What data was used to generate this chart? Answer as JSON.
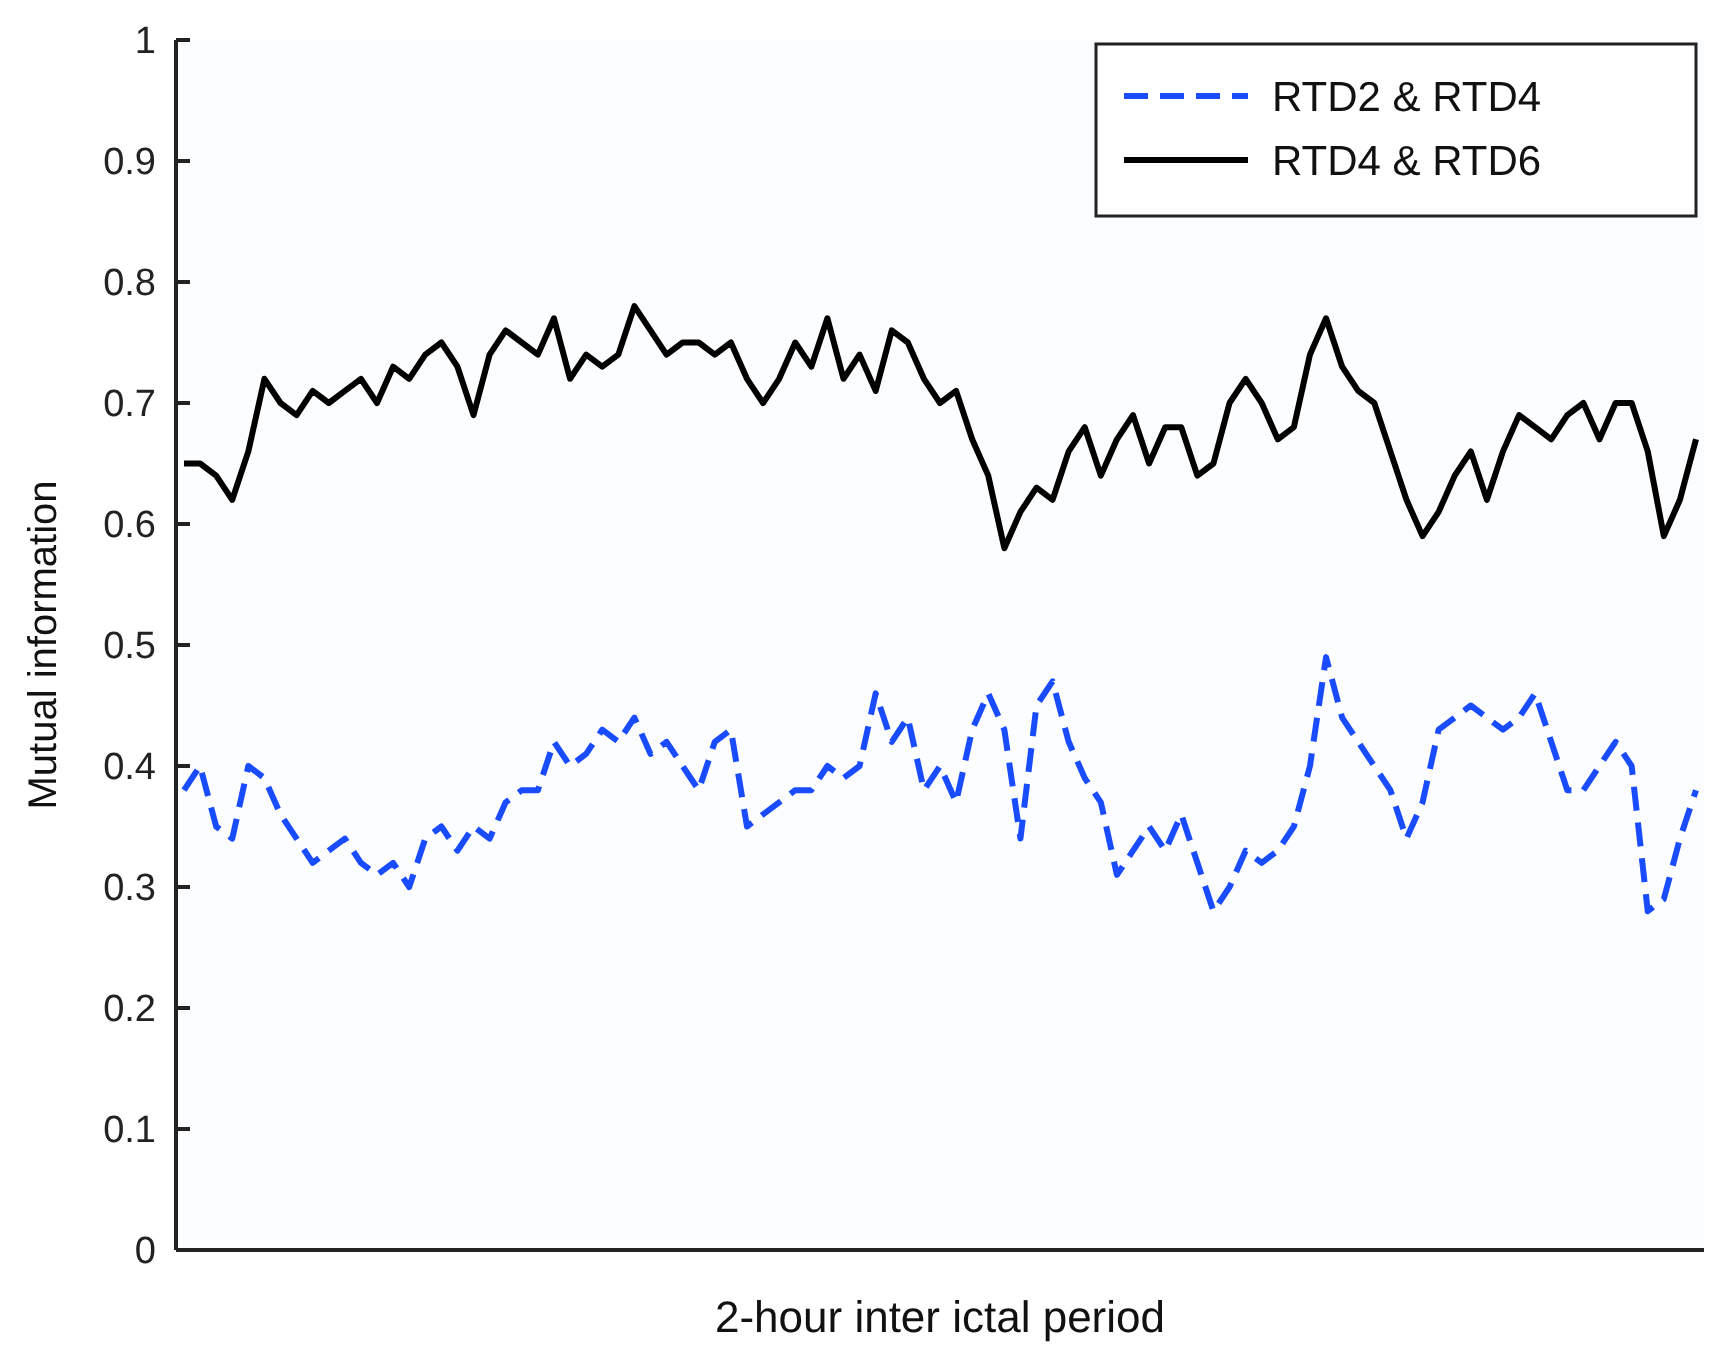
{
  "chart_data": {
    "type": "line",
    "xlabel": "2-hour inter ictal period",
    "ylabel": "Mutual information",
    "categories": [
      null,
      null,
      null,
      null,
      null,
      null,
      null,
      null,
      null,
      null,
      null,
      null,
      null,
      null,
      null,
      null,
      null,
      null,
      null,
      null,
      null,
      null,
      null,
      null,
      null,
      null,
      null,
      null,
      null,
      null,
      null,
      null,
      null,
      null,
      null,
      null,
      null,
      null,
      null,
      null,
      null,
      null,
      null,
      null,
      null,
      null,
      null,
      null,
      null,
      null,
      null,
      null,
      null,
      null,
      null,
      null,
      null,
      null,
      null,
      null,
      null,
      null,
      null,
      null,
      null,
      null,
      null,
      null,
      null,
      null,
      null,
      null,
      null,
      null,
      null,
      null,
      null,
      null,
      null,
      null,
      null,
      null,
      null,
      null,
      null,
      null,
      null,
      null,
      null,
      null,
      null,
      null,
      null,
      null,
      null
    ],
    "series": [
      {
        "name": "RTD2 & RTD4",
        "color": "#1a4cff",
        "line_style": "dashed",
        "values": [
          0.38,
          0.4,
          0.35,
          0.34,
          0.4,
          0.39,
          0.36,
          0.34,
          0.32,
          0.33,
          0.34,
          0.32,
          0.31,
          0.32,
          0.3,
          0.34,
          0.35,
          0.33,
          0.35,
          0.34,
          0.37,
          0.38,
          0.38,
          0.42,
          0.4,
          0.41,
          0.43,
          0.42,
          0.44,
          0.41,
          0.42,
          0.4,
          0.38,
          0.42,
          0.43,
          0.35,
          0.36,
          0.37,
          0.38,
          0.38,
          0.4,
          0.39,
          0.4,
          0.46,
          0.42,
          0.44,
          0.38,
          0.4,
          0.37,
          0.43,
          0.46,
          0.43,
          0.34,
          0.45,
          0.47,
          0.42,
          0.39,
          0.37,
          0.31,
          0.33,
          0.35,
          0.33,
          0.36,
          0.32,
          0.28,
          0.3,
          0.33,
          0.32,
          0.33,
          0.35,
          0.4,
          0.49,
          0.44,
          0.42,
          0.4,
          0.38,
          0.34,
          0.37,
          0.43,
          0.44,
          0.45,
          0.44,
          0.43,
          0.44,
          0.46,
          0.42,
          0.38,
          0.38,
          0.4,
          0.42,
          0.4,
          0.28,
          0.29,
          0.34,
          0.38
        ]
      },
      {
        "name": "RTD4 & RTD6",
        "color": "#000000",
        "line_style": "solid",
        "values": [
          0.65,
          0.65,
          0.64,
          0.62,
          0.66,
          0.72,
          0.7,
          0.69,
          0.71,
          0.7,
          0.71,
          0.72,
          0.7,
          0.73,
          0.72,
          0.74,
          0.75,
          0.73,
          0.69,
          0.74,
          0.76,
          0.75,
          0.74,
          0.77,
          0.72,
          0.74,
          0.73,
          0.74,
          0.78,
          0.76,
          0.74,
          0.75,
          0.75,
          0.74,
          0.75,
          0.72,
          0.7,
          0.72,
          0.75,
          0.73,
          0.77,
          0.72,
          0.74,
          0.71,
          0.76,
          0.75,
          0.72,
          0.7,
          0.71,
          0.67,
          0.64,
          0.58,
          0.61,
          0.63,
          0.62,
          0.66,
          0.68,
          0.64,
          0.67,
          0.69,
          0.65,
          0.68,
          0.68,
          0.64,
          0.65,
          0.7,
          0.72,
          0.7,
          0.67,
          0.68,
          0.74,
          0.77,
          0.73,
          0.71,
          0.7,
          0.66,
          0.62,
          0.59,
          0.61,
          0.64,
          0.66,
          0.62,
          0.66,
          0.69,
          0.68,
          0.67,
          0.69,
          0.7,
          0.67,
          0.7,
          0.7,
          0.66,
          0.59,
          0.62,
          0.67
        ]
      }
    ],
    "ylim": [
      0,
      1
    ],
    "yticks": [
      0,
      0.1,
      0.2,
      0.3,
      0.4,
      0.5,
      0.6,
      0.7,
      0.8,
      0.9,
      1
    ],
    "legend": "top right"
  }
}
